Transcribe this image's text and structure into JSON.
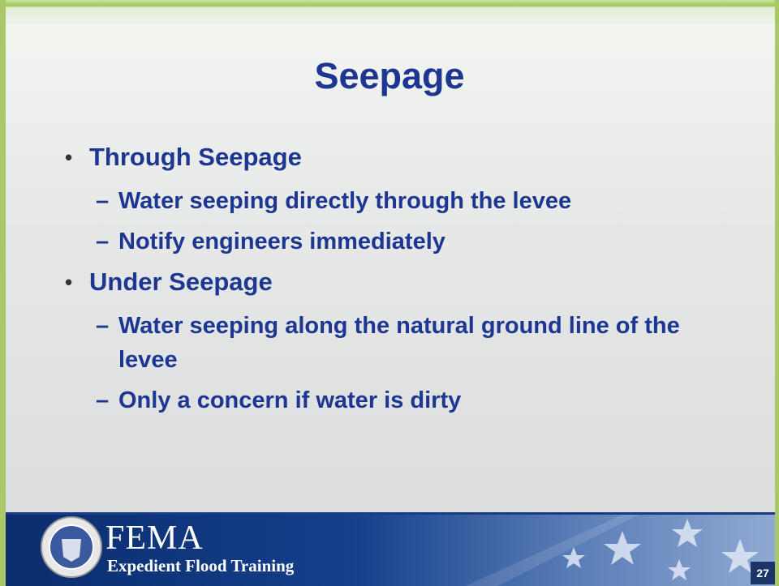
{
  "slide": {
    "title": "Seepage",
    "bullets": [
      {
        "text": "Through Seepage",
        "subs": [
          "Water seeping directly through the levee",
          "Notify engineers immediately"
        ]
      },
      {
        "text": "Under Seepage",
        "subs": [
          "Water seeping along the natural ground line of the levee",
          "Only a concern if water is dirty"
        ]
      }
    ]
  },
  "footer": {
    "logo": "FEMA",
    "subtitle": "Expedient Flood Training",
    "page_number": 27
  }
}
